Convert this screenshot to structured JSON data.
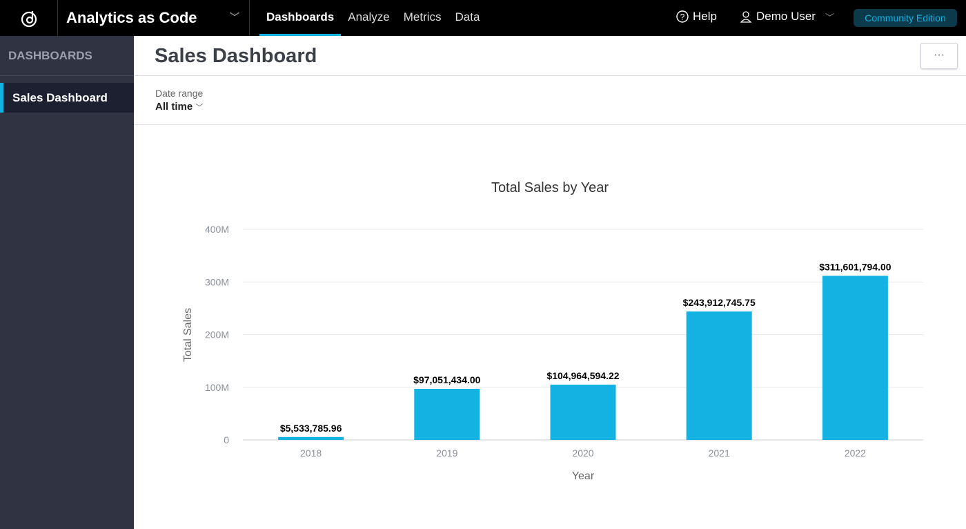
{
  "topbar": {
    "workspace": "Analytics as Code",
    "nav": [
      "Dashboards",
      "Analyze",
      "Metrics",
      "Data"
    ],
    "active_nav": "Dashboards",
    "help": "Help",
    "user": "Demo User",
    "edition": "Community Edition"
  },
  "sidebar": {
    "heading": "DASHBOARDS",
    "items": [
      {
        "label": "Sales Dashboard",
        "active": true
      }
    ]
  },
  "header": {
    "title": "Sales Dashboard",
    "more": "···"
  },
  "filter": {
    "label": "Date range",
    "value": "All time"
  },
  "chart_data": {
    "type": "bar",
    "title": "Total Sales by Year",
    "xlabel": "Year",
    "ylabel": "Total Sales",
    "categories": [
      "2018",
      "2019",
      "2020",
      "2021",
      "2022"
    ],
    "values": [
      5533785.96,
      97051434.0,
      104964594.22,
      243912745.75,
      311601794.0
    ],
    "data_labels": [
      "$5,533,785.96",
      "$97,051,434.00",
      "$104,964,594.22",
      "$243,912,745.75",
      "$311,601,794.00"
    ],
    "ylim": [
      0,
      400000000
    ],
    "yticks": [
      0,
      100000000,
      200000000,
      300000000,
      400000000
    ],
    "ytick_labels": [
      "0",
      "100M",
      "200M",
      "300M",
      "400M"
    ],
    "grid": true,
    "color": "#14b2e2"
  }
}
